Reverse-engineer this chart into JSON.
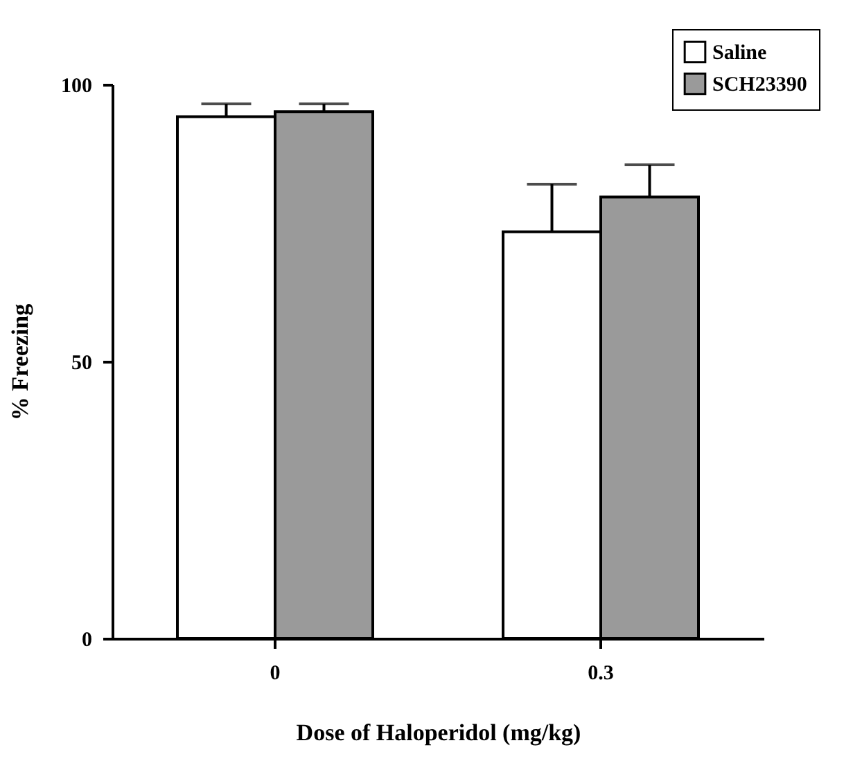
{
  "chart_data": {
    "type": "bar",
    "xlabel": "Dose of Haloperidol (mg/kg)",
    "ylabel": "% Freezing",
    "categories": [
      "0",
      "0.3"
    ],
    "series": [
      {
        "name": "Saline",
        "color": "#ffffff",
        "values": [
          94.2,
          73.4
        ],
        "errors": [
          [
            94.2,
            96.5
          ],
          [
            73.4,
            82.0
          ]
        ]
      },
      {
        "name": "SCH23390",
        "color": "#9a9a9a",
        "values": [
          95.1,
          79.7
        ],
        "errors": [
          [
            95.1,
            96.5
          ],
          [
            79.7,
            85.5
          ]
        ]
      }
    ],
    "ylim": [
      0,
      100
    ],
    "yticks": [
      0,
      50,
      100
    ],
    "grid": false,
    "legend": "top right"
  }
}
